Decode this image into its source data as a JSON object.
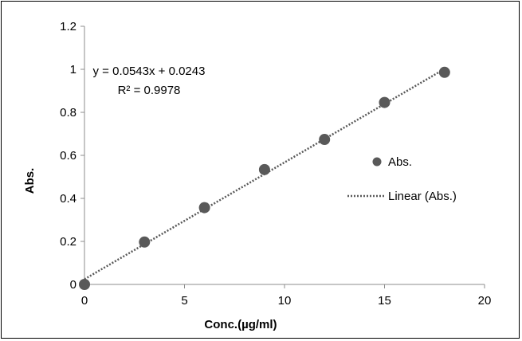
{
  "chart_data": {
    "type": "scatter",
    "title": "",
    "xlabel": "Conc.(µg/ml)",
    "ylabel": "Abs.",
    "xlim": [
      0,
      20
    ],
    "ylim": [
      0,
      1.2
    ],
    "x_ticks": [
      0,
      5,
      10,
      15,
      20
    ],
    "y_ticks": [
      0,
      0.2,
      0.4,
      0.6,
      0.8,
      1,
      1.2
    ],
    "x_tick_labels": [
      "0",
      "5",
      "10",
      "15",
      "20"
    ],
    "y_tick_labels": [
      "0",
      "0.2",
      "0.4",
      "0.6",
      "0.8",
      "1",
      "1.2"
    ],
    "grid": false,
    "legend_position": "right",
    "series": [
      {
        "name": "Abs.",
        "x": [
          0,
          3,
          6,
          9,
          12,
          15,
          18
        ],
        "y": [
          0,
          0.197,
          0.357,
          0.534,
          0.674,
          0.846,
          0.986
        ],
        "color": "#595959"
      }
    ],
    "trendline": {
      "name": "Linear (Abs.)",
      "slope": 0.0543,
      "intercept": 0.0243,
      "x_range": [
        0,
        18
      ],
      "color": "#595959",
      "style": "dotted"
    },
    "annotations": {
      "equation": "y = 0.0543x + 0.0243",
      "r_squared": "R² = 0.9978"
    }
  }
}
